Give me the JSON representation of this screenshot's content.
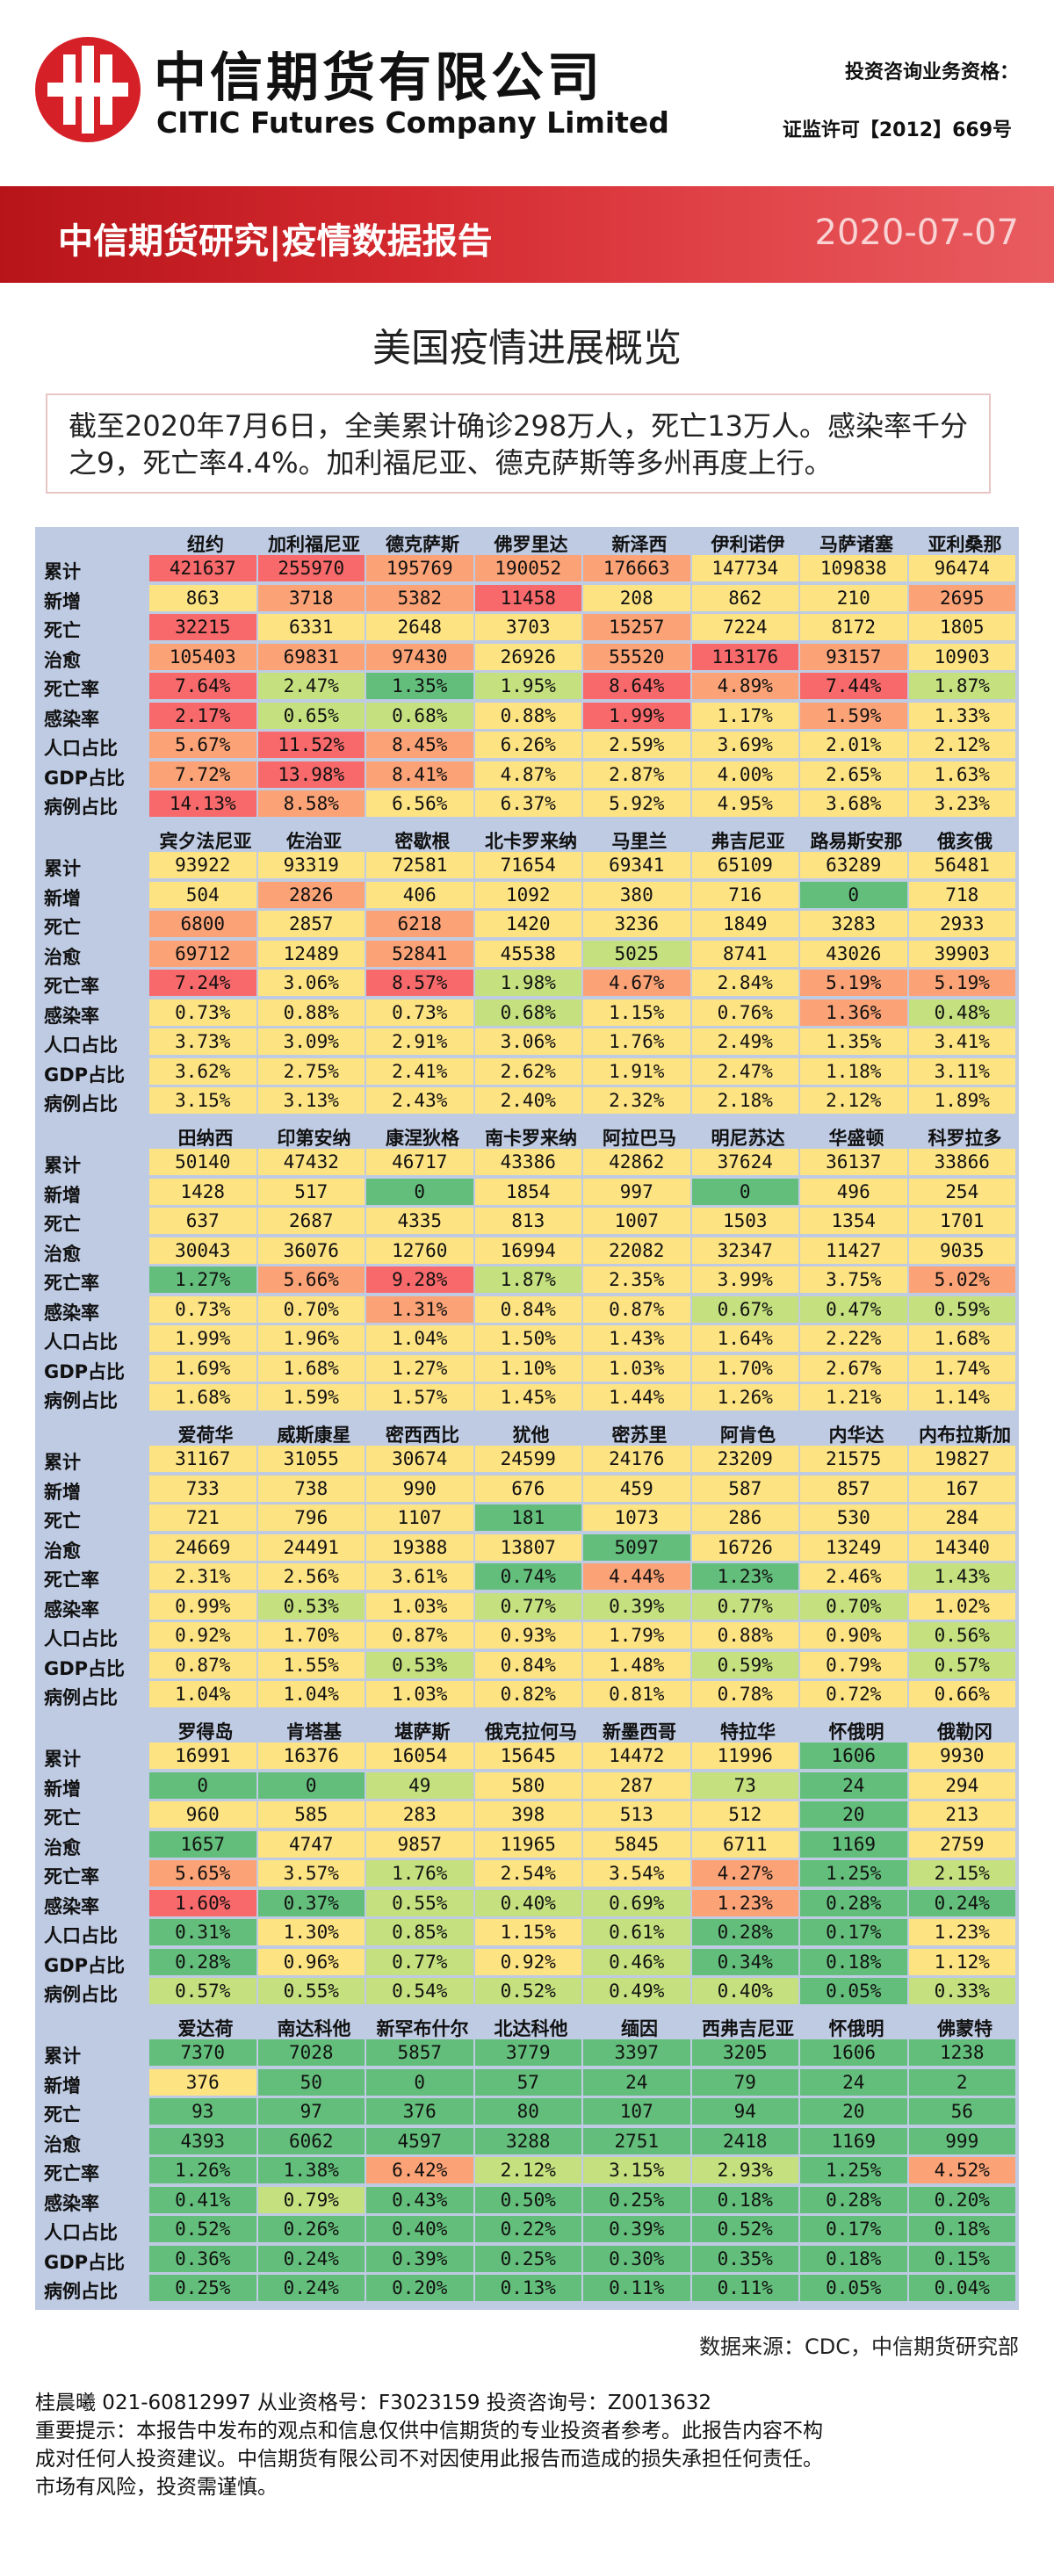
{
  "header": {
    "brand_cn": "中信期货有限公司",
    "brand_en": "CITIC Futures Company Limited",
    "qualification_1": "投资咨询业务资格：",
    "qualification_2": "证监许可【2012】669号"
  },
  "banner": {
    "title": "中信期货研究|疫情数据报告",
    "date": "2020-07-07"
  },
  "page_title": "美国疫情进展概览",
  "summary": "截至2020年7月6日，全美累计确诊298万人，死亡13万人。感染率千分之9，死亡率4.4%。加利福尼亚、德克萨斯等多州再度上行。",
  "row_labels": [
    "累计",
    "新增",
    "死亡",
    "治愈",
    "死亡率",
    "感染率",
    "人口占比",
    "GDP占比",
    "病例占比"
  ],
  "colors": {
    "red": "#f8696b",
    "orange": "#fba276",
    "yellow": "#fee382",
    "lime": "#c5e07e",
    "green": "#63be7b"
  },
  "sections": [
    {
      "states": [
        "纽约",
        "加利福尼亚",
        "德克萨斯",
        "佛罗里达",
        "新泽西",
        "伊利诺伊",
        "马萨诸塞",
        "亚利桑那"
      ],
      "rows": [
        [
          "421637",
          "255970",
          "195769",
          "190052",
          "176663",
          "147734",
          "109838",
          "96474"
        ],
        [
          "863",
          "3718",
          "5382",
          "11458",
          "208",
          "862",
          "210",
          "2695"
        ],
        [
          "32215",
          "6331",
          "2648",
          "3703",
          "15257",
          "7224",
          "8172",
          "1805"
        ],
        [
          "105403",
          "69831",
          "97430",
          "26926",
          "55520",
          "113176",
          "93157",
          "10903"
        ],
        [
          "7.64%",
          "2.47%",
          "1.35%",
          "1.95%",
          "8.64%",
          "4.89%",
          "7.44%",
          "1.87%"
        ],
        [
          "2.17%",
          "0.65%",
          "0.68%",
          "0.88%",
          "1.99%",
          "1.17%",
          "1.59%",
          "1.33%"
        ],
        [
          "5.67%",
          "11.52%",
          "8.45%",
          "6.26%",
          "2.59%",
          "3.69%",
          "2.01%",
          "2.12%"
        ],
        [
          "7.72%",
          "13.98%",
          "8.41%",
          "4.87%",
          "2.87%",
          "4.00%",
          "2.65%",
          "1.63%"
        ],
        [
          "14.13%",
          "8.58%",
          "6.56%",
          "6.37%",
          "5.92%",
          "4.95%",
          "3.68%",
          "3.23%"
        ]
      ],
      "colors": [
        [
          "R",
          "R",
          "O",
          "O",
          "O",
          "Y",
          "Y",
          "Y"
        ],
        [
          "Y",
          "O",
          "O",
          "R",
          "Y",
          "Y",
          "Y",
          "O"
        ],
        [
          "R",
          "Y",
          "Y",
          "Y",
          "O",
          "Y",
          "Y",
          "Y"
        ],
        [
          "O",
          "O",
          "O",
          "Y",
          "O",
          "R",
          "O",
          "Y"
        ],
        [
          "R",
          "L",
          "G",
          "L",
          "R",
          "O",
          "R",
          "L"
        ],
        [
          "R",
          "L",
          "L",
          "Y",
          "R",
          "Y",
          "O",
          "Y"
        ],
        [
          "O",
          "R",
          "O",
          "Y",
          "Y",
          "Y",
          "Y",
          "Y"
        ],
        [
          "O",
          "R",
          "O",
          "Y",
          "Y",
          "Y",
          "Y",
          "Y"
        ],
        [
          "R",
          "O",
          "Y",
          "Y",
          "Y",
          "Y",
          "Y",
          "Y"
        ]
      ]
    },
    {
      "states": [
        "宾夕法尼亚",
        "佐治亚",
        "密歇根",
        "北卡罗来纳",
        "马里兰",
        "弗吉尼亚",
        "路易斯安那",
        "俄亥俄"
      ],
      "rows": [
        [
          "93922",
          "93319",
          "72581",
          "71654",
          "69341",
          "65109",
          "63289",
          "56481"
        ],
        [
          "504",
          "2826",
          "406",
          "1092",
          "380",
          "716",
          "0",
          "718"
        ],
        [
          "6800",
          "2857",
          "6218",
          "1420",
          "3236",
          "1849",
          "3283",
          "2933"
        ],
        [
          "69712",
          "12489",
          "52841",
          "45538",
          "5025",
          "8741",
          "43026",
          "39903"
        ],
        [
          "7.24%",
          "3.06%",
          "8.57%",
          "1.98%",
          "4.67%",
          "2.84%",
          "5.19%",
          "5.19%"
        ],
        [
          "0.73%",
          "0.88%",
          "0.73%",
          "0.68%",
          "1.15%",
          "0.76%",
          "1.36%",
          "0.48%"
        ],
        [
          "3.73%",
          "3.09%",
          "2.91%",
          "3.06%",
          "1.76%",
          "2.49%",
          "1.35%",
          "3.41%"
        ],
        [
          "3.62%",
          "2.75%",
          "2.41%",
          "2.62%",
          "1.91%",
          "2.47%",
          "1.18%",
          "3.11%"
        ],
        [
          "3.15%",
          "3.13%",
          "2.43%",
          "2.40%",
          "2.32%",
          "2.18%",
          "2.12%",
          "1.89%"
        ]
      ],
      "colors": [
        [
          "Y",
          "Y",
          "Y",
          "Y",
          "Y",
          "Y",
          "Y",
          "Y"
        ],
        [
          "Y",
          "O",
          "Y",
          "Y",
          "Y",
          "Y",
          "G",
          "Y"
        ],
        [
          "O",
          "Y",
          "O",
          "Y",
          "Y",
          "Y",
          "Y",
          "Y"
        ],
        [
          "O",
          "Y",
          "O",
          "Y",
          "L",
          "Y",
          "Y",
          "Y"
        ],
        [
          "R",
          "Y",
          "R",
          "L",
          "O",
          "Y",
          "O",
          "O"
        ],
        [
          "Y",
          "Y",
          "Y",
          "L",
          "Y",
          "Y",
          "O",
          "L"
        ],
        [
          "Y",
          "Y",
          "Y",
          "Y",
          "Y",
          "Y",
          "Y",
          "Y"
        ],
        [
          "Y",
          "Y",
          "Y",
          "Y",
          "Y",
          "Y",
          "Y",
          "Y"
        ],
        [
          "Y",
          "Y",
          "Y",
          "Y",
          "Y",
          "Y",
          "Y",
          "Y"
        ]
      ]
    },
    {
      "states": [
        "田纳西",
        "印第安纳",
        "康涅狄格",
        "南卡罗来纳",
        "阿拉巴马",
        "明尼苏达",
        "华盛顿",
        "科罗拉多"
      ],
      "rows": [
        [
          "50140",
          "47432",
          "46717",
          "43386",
          "42862",
          "37624",
          "36137",
          "33866"
        ],
        [
          "1428",
          "517",
          "0",
          "1854",
          "997",
          "0",
          "496",
          "254"
        ],
        [
          "637",
          "2687",
          "4335",
          "813",
          "1007",
          "1503",
          "1354",
          "1701"
        ],
        [
          "30043",
          "36076",
          "12760",
          "16994",
          "22082",
          "32347",
          "11427",
          "9035"
        ],
        [
          "1.27%",
          "5.66%",
          "9.28%",
          "1.87%",
          "2.35%",
          "3.99%",
          "3.75%",
          "5.02%"
        ],
        [
          "0.73%",
          "0.70%",
          "1.31%",
          "0.84%",
          "0.87%",
          "0.67%",
          "0.47%",
          "0.59%"
        ],
        [
          "1.99%",
          "1.96%",
          "1.04%",
          "1.50%",
          "1.43%",
          "1.64%",
          "2.22%",
          "1.68%"
        ],
        [
          "1.69%",
          "1.68%",
          "1.27%",
          "1.10%",
          "1.03%",
          "1.70%",
          "2.67%",
          "1.74%"
        ],
        [
          "1.68%",
          "1.59%",
          "1.57%",
          "1.45%",
          "1.44%",
          "1.26%",
          "1.21%",
          "1.14%"
        ]
      ],
      "colors": [
        [
          "Y",
          "Y",
          "Y",
          "Y",
          "Y",
          "Y",
          "Y",
          "Y"
        ],
        [
          "Y",
          "Y",
          "G",
          "Y",
          "Y",
          "G",
          "Y",
          "Y"
        ],
        [
          "Y",
          "Y",
          "Y",
          "Y",
          "Y",
          "Y",
          "Y",
          "Y"
        ],
        [
          "Y",
          "Y",
          "Y",
          "Y",
          "Y",
          "Y",
          "Y",
          "Y"
        ],
        [
          "G",
          "O",
          "R",
          "L",
          "Y",
          "Y",
          "Y",
          "O"
        ],
        [
          "Y",
          "Y",
          "O",
          "Y",
          "Y",
          "L",
          "L",
          "L"
        ],
        [
          "Y",
          "Y",
          "Y",
          "Y",
          "Y",
          "Y",
          "Y",
          "Y"
        ],
        [
          "Y",
          "Y",
          "Y",
          "Y",
          "Y",
          "Y",
          "Y",
          "Y"
        ],
        [
          "Y",
          "Y",
          "Y",
          "Y",
          "Y",
          "Y",
          "Y",
          "Y"
        ]
      ]
    },
    {
      "states": [
        "爱荷华",
        "威斯康星",
        "密西西比",
        "犹他",
        "密苏里",
        "阿肯色",
        "内华达",
        "内布拉斯加"
      ],
      "rows": [
        [
          "31167",
          "31055",
          "30674",
          "24599",
          "24176",
          "23209",
          "21575",
          "19827"
        ],
        [
          "733",
          "738",
          "990",
          "676",
          "459",
          "587",
          "857",
          "167"
        ],
        [
          "721",
          "796",
          "1107",
          "181",
          "1073",
          "286",
          "530",
          "284"
        ],
        [
          "24669",
          "24491",
          "19388",
          "13807",
          "5097",
          "16726",
          "13249",
          "14340"
        ],
        [
          "2.31%",
          "2.56%",
          "3.61%",
          "0.74%",
          "4.44%",
          "1.23%",
          "2.46%",
          "1.43%"
        ],
        [
          "0.99%",
          "0.53%",
          "1.03%",
          "0.77%",
          "0.39%",
          "0.77%",
          "0.70%",
          "1.02%"
        ],
        [
          "0.92%",
          "1.70%",
          "0.87%",
          "0.93%",
          "1.79%",
          "0.88%",
          "0.90%",
          "0.56%"
        ],
        [
          "0.87%",
          "1.55%",
          "0.53%",
          "0.84%",
          "1.48%",
          "0.59%",
          "0.79%",
          "0.57%"
        ],
        [
          "1.04%",
          "1.04%",
          "1.03%",
          "0.82%",
          "0.81%",
          "0.78%",
          "0.72%",
          "0.66%"
        ]
      ],
      "colors": [
        [
          "Y",
          "Y",
          "Y",
          "Y",
          "Y",
          "Y",
          "Y",
          "Y"
        ],
        [
          "Y",
          "Y",
          "Y",
          "Y",
          "Y",
          "Y",
          "Y",
          "Y"
        ],
        [
          "Y",
          "Y",
          "Y",
          "G",
          "Y",
          "Y",
          "Y",
          "Y"
        ],
        [
          "Y",
          "Y",
          "Y",
          "Y",
          "G",
          "Y",
          "Y",
          "Y"
        ],
        [
          "Y",
          "Y",
          "Y",
          "G",
          "O",
          "G",
          "Y",
          "L"
        ],
        [
          "Y",
          "L",
          "Y",
          "L",
          "L",
          "L",
          "L",
          "Y"
        ],
        [
          "Y",
          "Y",
          "Y",
          "Y",
          "Y",
          "Y",
          "Y",
          "L"
        ],
        [
          "Y",
          "Y",
          "L",
          "Y",
          "Y",
          "L",
          "Y",
          "L"
        ],
        [
          "Y",
          "Y",
          "Y",
          "Y",
          "Y",
          "Y",
          "Y",
          "Y"
        ]
      ]
    },
    {
      "states": [
        "罗得岛",
        "肯塔基",
        "堪萨斯",
        "俄克拉何马",
        "新墨西哥",
        "特拉华",
        "怀俄明",
        "俄勒冈"
      ],
      "rows": [
        [
          "16991",
          "16376",
          "16054",
          "15645",
          "14472",
          "11996",
          "1606",
          "9930"
        ],
        [
          "0",
          "0",
          "49",
          "580",
          "287",
          "73",
          "24",
          "294"
        ],
        [
          "960",
          "585",
          "283",
          "398",
          "513",
          "512",
          "20",
          "213"
        ],
        [
          "1657",
          "4747",
          "9857",
          "11965",
          "5845",
          "6711",
          "1169",
          "2759"
        ],
        [
          "5.65%",
          "3.57%",
          "1.76%",
          "2.54%",
          "3.54%",
          "4.27%",
          "1.25%",
          "2.15%"
        ],
        [
          "1.60%",
          "0.37%",
          "0.55%",
          "0.40%",
          "0.69%",
          "1.23%",
          "0.28%",
          "0.24%"
        ],
        [
          "0.31%",
          "1.30%",
          "0.85%",
          "1.15%",
          "0.61%",
          "0.28%",
          "0.17%",
          "1.23%"
        ],
        [
          "0.28%",
          "0.96%",
          "0.77%",
          "0.92%",
          "0.46%",
          "0.34%",
          "0.18%",
          "1.12%"
        ],
        [
          "0.57%",
          "0.55%",
          "0.54%",
          "0.52%",
          "0.49%",
          "0.40%",
          "0.05%",
          "0.33%"
        ]
      ],
      "colors": [
        [
          "Y",
          "Y",
          "Y",
          "Y",
          "Y",
          "Y",
          "G",
          "Y"
        ],
        [
          "G",
          "G",
          "L",
          "Y",
          "Y",
          "L",
          "G",
          "Y"
        ],
        [
          "Y",
          "Y",
          "Y",
          "Y",
          "Y",
          "Y",
          "G",
          "Y"
        ],
        [
          "G",
          "Y",
          "Y",
          "Y",
          "Y",
          "Y",
          "G",
          "Y"
        ],
        [
          "O",
          "Y",
          "L",
          "Y",
          "Y",
          "O",
          "G",
          "L"
        ],
        [
          "R",
          "G",
          "L",
          "L",
          "L",
          "O",
          "G",
          "G"
        ],
        [
          "G",
          "Y",
          "L",
          "Y",
          "L",
          "G",
          "G",
          "Y"
        ],
        [
          "G",
          "Y",
          "L",
          "Y",
          "L",
          "G",
          "G",
          "Y"
        ],
        [
          "L",
          "L",
          "L",
          "L",
          "L",
          "L",
          "G",
          "L"
        ]
      ]
    },
    {
      "states": [
        "爱达荷",
        "南达科他",
        "新罕布什尔",
        "北达科他",
        "缅因",
        "西弗吉尼亚",
        "怀俄明",
        "佛蒙特"
      ],
      "rows": [
        [
          "7370",
          "7028",
          "5857",
          "3779",
          "3397",
          "3205",
          "1606",
          "1238"
        ],
        [
          "376",
          "50",
          "0",
          "57",
          "24",
          "79",
          "24",
          "2"
        ],
        [
          "93",
          "97",
          "376",
          "80",
          "107",
          "94",
          "20",
          "56"
        ],
        [
          "4393",
          "6062",
          "4597",
          "3288",
          "2751",
          "2418",
          "1169",
          "999"
        ],
        [
          "1.26%",
          "1.38%",
          "6.42%",
          "2.12%",
          "3.15%",
          "2.93%",
          "1.25%",
          "4.52%"
        ],
        [
          "0.41%",
          "0.79%",
          "0.43%",
          "0.50%",
          "0.25%",
          "0.18%",
          "0.28%",
          "0.20%"
        ],
        [
          "0.52%",
          "0.26%",
          "0.40%",
          "0.22%",
          "0.39%",
          "0.52%",
          "0.17%",
          "0.18%"
        ],
        [
          "0.36%",
          "0.24%",
          "0.39%",
          "0.25%",
          "0.30%",
          "0.35%",
          "0.18%",
          "0.15%"
        ],
        [
          "0.25%",
          "0.24%",
          "0.20%",
          "0.13%",
          "0.11%",
          "0.11%",
          "0.05%",
          "0.04%"
        ]
      ],
      "colors": [
        [
          "G",
          "G",
          "G",
          "G",
          "G",
          "G",
          "G",
          "G"
        ],
        [
          "Y",
          "G",
          "G",
          "G",
          "G",
          "G",
          "G",
          "G"
        ],
        [
          "G",
          "G",
          "G",
          "G",
          "G",
          "G",
          "G",
          "G"
        ],
        [
          "G",
          "G",
          "G",
          "G",
          "G",
          "G",
          "G",
          "G"
        ],
        [
          "G",
          "G",
          "O",
          "L",
          "L",
          "L",
          "G",
          "O"
        ],
        [
          "G",
          "L",
          "G",
          "G",
          "G",
          "G",
          "G",
          "G"
        ],
        [
          "G",
          "G",
          "G",
          "G",
          "G",
          "G",
          "G",
          "G"
        ],
        [
          "G",
          "G",
          "G",
          "G",
          "G",
          "G",
          "G",
          "G"
        ],
        [
          "G",
          "G",
          "G",
          "G",
          "G",
          "G",
          "G",
          "G"
        ]
      ]
    }
  ],
  "source": "数据来源：CDC，中信期货研究部",
  "footer": {
    "author_line": "桂晨曦  021-60812997 从业资格号：F3023159 投资咨询号：Z0013632",
    "disclaimer_1": "重要提示：本报告中发布的观点和信息仅供中信期货的专业投资者参考。此报告内容不构",
    "disclaimer_2": "成对任何人投资建议。中信期货有限公司不对因使用此报告而造成的损失承担任何责任。",
    "disclaimer_3": "市场有风险，投资需谨慎。"
  }
}
